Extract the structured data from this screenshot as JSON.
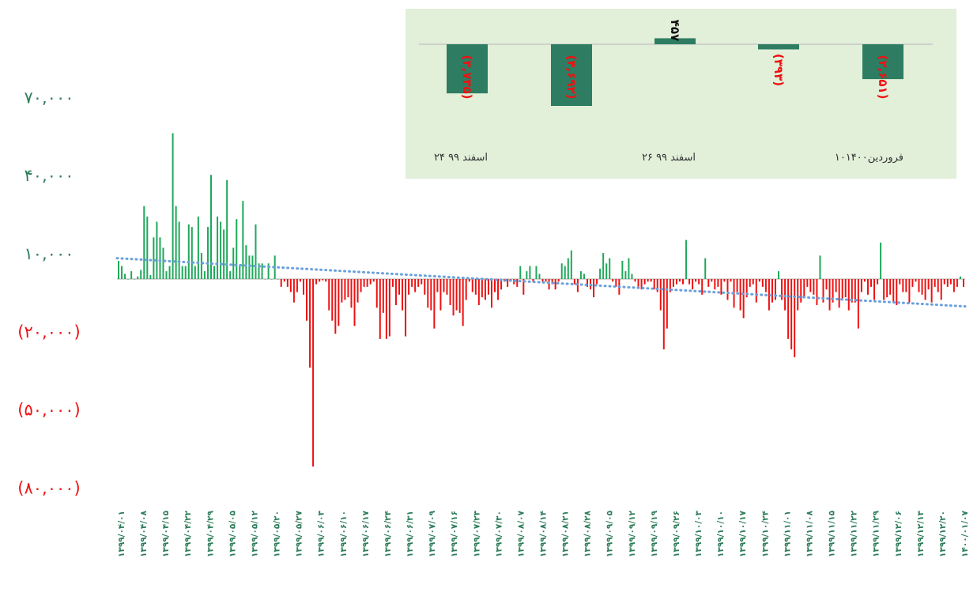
{
  "colors": {
    "positive": "#1fa85a",
    "negative": "#ee1111",
    "axis_label_green": "#2e7d5b",
    "axis_label_red": "#ee1111",
    "trendline": "#6aa0dc",
    "inset_bg": "#e2efd9",
    "inset_bar": "#2e7d62",
    "zero_line": "#c8c8c8"
  },
  "chart_data": [
    {
      "type": "bar",
      "title": "",
      "xlabel": "",
      "ylabel": "",
      "ylim": [
        -82000,
        85000
      ],
      "y_ticks": [
        {
          "value": 70000,
          "label": "۷۰,۰۰۰",
          "sign": "positive"
        },
        {
          "value": 40000,
          "label": "۴۰,۰۰۰",
          "sign": "positive"
        },
        {
          "value": 10000,
          "label": "۱۰,۰۰۰",
          "sign": "positive"
        },
        {
          "value": -20000,
          "label": "(۲۰,۰۰۰)",
          "sign": "negative"
        },
        {
          "value": -50000,
          "label": "(۵۰,۰۰۰)",
          "sign": "negative"
        },
        {
          "value": -80000,
          "label": "(۸۰,۰۰۰)",
          "sign": "negative"
        }
      ],
      "x_tick_labels": [
        "۱۳۹۹/۰۴/۰۱",
        "۱۳۹۹/۰۴/۰۸",
        "۱۳۹۹/۰۴/۱۵",
        "۱۳۹۹/۰۴/۲۲",
        "۱۳۹۹/۰۴/۲۹",
        "۱۳۹۹/۰۵/۰۵",
        "۱۳۹۹/۰۵/۱۲",
        "۱۳۹۹/۰۵/۲۰",
        "۱۳۹۹/۰۵/۲۷",
        "۱۳۹۹/۰۶/۰۳",
        "۱۳۹۹/۰۶/۱۰",
        "۱۳۹۹/۰۶/۱۷",
        "۱۳۹۹/۰۶/۲۴",
        "۱۳۹۹/۰۶/۳۱",
        "۱۳۹۹/۰۷/۰۹",
        "۱۳۹۹/۰۷/۱۶",
        "۱۳۹۹/۰۷/۲۳",
        "۱۳۹۹/۰۷/۳۰",
        "۱۳۹۹/۰۸/۰۷",
        "۱۳۹۹/۰۸/۱۴",
        "۱۳۹۹/۰۸/۲۱",
        "۱۳۹۹/۰۸/۲۸",
        "۱۳۹۹/۰۹/۰۵",
        "۱۳۹۹/۰۹/۱۲",
        "۱۳۹۹/۰۹/۱۹",
        "۱۳۹۹/۰۹/۲۶",
        "۱۳۹۹/۱۰/۰۳",
        "۱۳۹۹/۱۰/۱۰",
        "۱۳۹۹/۱۰/۱۷",
        "۱۳۹۹/۱۰/۲۴",
        "۱۳۹۹/۱۱/۰۱",
        "۱۳۹۹/۱۱/۰۸",
        "۱۳۹۹/۱۱/۱۵",
        "۱۳۹۹/۱۱/۲۲",
        "۱۳۹۹/۱۱/۲۹",
        "۱۳۹۹/۱۲/۰۶",
        "۱۳۹۹/۱۲/۱۳",
        "۱۳۹۹/۱۲/۲۰",
        "۱۴۰۰/۰۱/۰۷"
      ],
      "values": [
        7000,
        5000,
        2000,
        0,
        3000,
        0,
        1000,
        3500,
        28000,
        24000,
        1500,
        16000,
        22000,
        16000,
        12000,
        3000,
        5000,
        56000,
        28000,
        22000,
        5000,
        5000,
        21000,
        20000,
        5000,
        24000,
        10000,
        3000,
        20000,
        40000,
        5000,
        24000,
        22000,
        19000,
        38000,
        3000,
        12000,
        23000,
        5000,
        30000,
        13000,
        9000,
        9000,
        21000,
        6000,
        6000,
        0,
        6000,
        0,
        9000,
        0,
        -3000,
        -1000,
        -3000,
        -5000,
        -9000,
        -5000,
        -1000,
        -6000,
        -16000,
        -34000,
        -72000,
        -2000,
        -1000,
        -500,
        -1000,
        -12000,
        -16000,
        -21000,
        -18000,
        -9000,
        -8000,
        -7000,
        -11000,
        -18000,
        -9000,
        -5000,
        -3000,
        -3000,
        -2000,
        -1000,
        -11000,
        -23000,
        -13000,
        -23000,
        -22000,
        -3000,
        -10000,
        -6000,
        -12000,
        -22000,
        -6000,
        -3000,
        -5000,
        -3000,
        -2000,
        -6000,
        -11000,
        -12000,
        -19000,
        -5000,
        -12000,
        -5000,
        -6000,
        -10000,
        -14000,
        -12000,
        -13000,
        -18000,
        -8000,
        -1000,
        -5000,
        -6000,
        -10000,
        -7000,
        -8000,
        -6000,
        -11000,
        -5000,
        -8000,
        -4000,
        -1000,
        -3000,
        -1000,
        -2000,
        -3000,
        5000,
        -6000,
        3000,
        5000,
        -1000,
        5000,
        2000,
        -1000,
        -1000,
        -4000,
        -2000,
        -4000,
        -1000,
        6000,
        5000,
        8000,
        11000,
        -2000,
        -5000,
        3000,
        2000,
        -3000,
        -4000,
        -7000,
        -2000,
        4000,
        10000,
        6000,
        8000,
        -1000,
        -3000,
        -6000,
        7000,
        3000,
        8000,
        2000,
        -1000,
        -3000,
        -4000,
        -2000,
        -1000,
        -1000,
        -4000,
        -5000,
        -12000,
        -27000,
        -19000,
        -5000,
        -3000,
        -2000,
        -1000,
        -2000,
        15000,
        -2000,
        -4000,
        -1000,
        -2000,
        -6000,
        8000,
        -3000,
        -1000,
        -4000,
        -3000,
        -6000,
        -1000,
        -8000,
        -1000,
        -11000,
        -5000,
        -12000,
        -15000,
        -7000,
        -3000,
        -2000,
        -9000,
        -1000,
        -3000,
        -5000,
        -12000,
        -9000,
        -8000,
        3000,
        -8000,
        -12000,
        -23000,
        -27000,
        -30000,
        -12000,
        -9000,
        -7000,
        -3000,
        -5000,
        -6000,
        -10000,
        9000,
        -9000,
        -4000,
        -12000,
        -9000,
        -5000,
        -11000,
        -8000,
        -7000,
        -12000,
        -9000,
        -9000,
        -19000,
        -5000,
        -1000,
        -6000,
        -3000,
        -8000,
        -2000,
        14000,
        -8000,
        -7000,
        -6000,
        -9000,
        -10000,
        -2000,
        -5000,
        -5000,
        -9000,
        -3000,
        -1000,
        -5000,
        -6000,
        -8000,
        -4000,
        -9000,
        -3000,
        -5000,
        -8000,
        -2000,
        -3000,
        -2000,
        -5000,
        -3000,
        1000,
        -3000
      ],
      "trendline": {
        "style": "dotted",
        "start": 8000,
        "end": -10500
      }
    },
    {
      "type": "bar",
      "title": "",
      "categories": [
        "۱۰فروردین۱۴۰۰",
        "",
        "۲۶ اسفند ۹۹",
        "",
        "۲۴ اسفند ۹۹"
      ],
      "values": [
        -2651,
        -393,
        457,
        -4692,
        -3735
      ],
      "value_labels": [
        "(۲,۶۵۱)",
        "(۳۹۳)",
        "۴۵۷",
        "(۴,۶۹۲)",
        "(۳,۷۳۵)"
      ],
      "ylim": [
        -4800,
        800
      ]
    }
  ]
}
